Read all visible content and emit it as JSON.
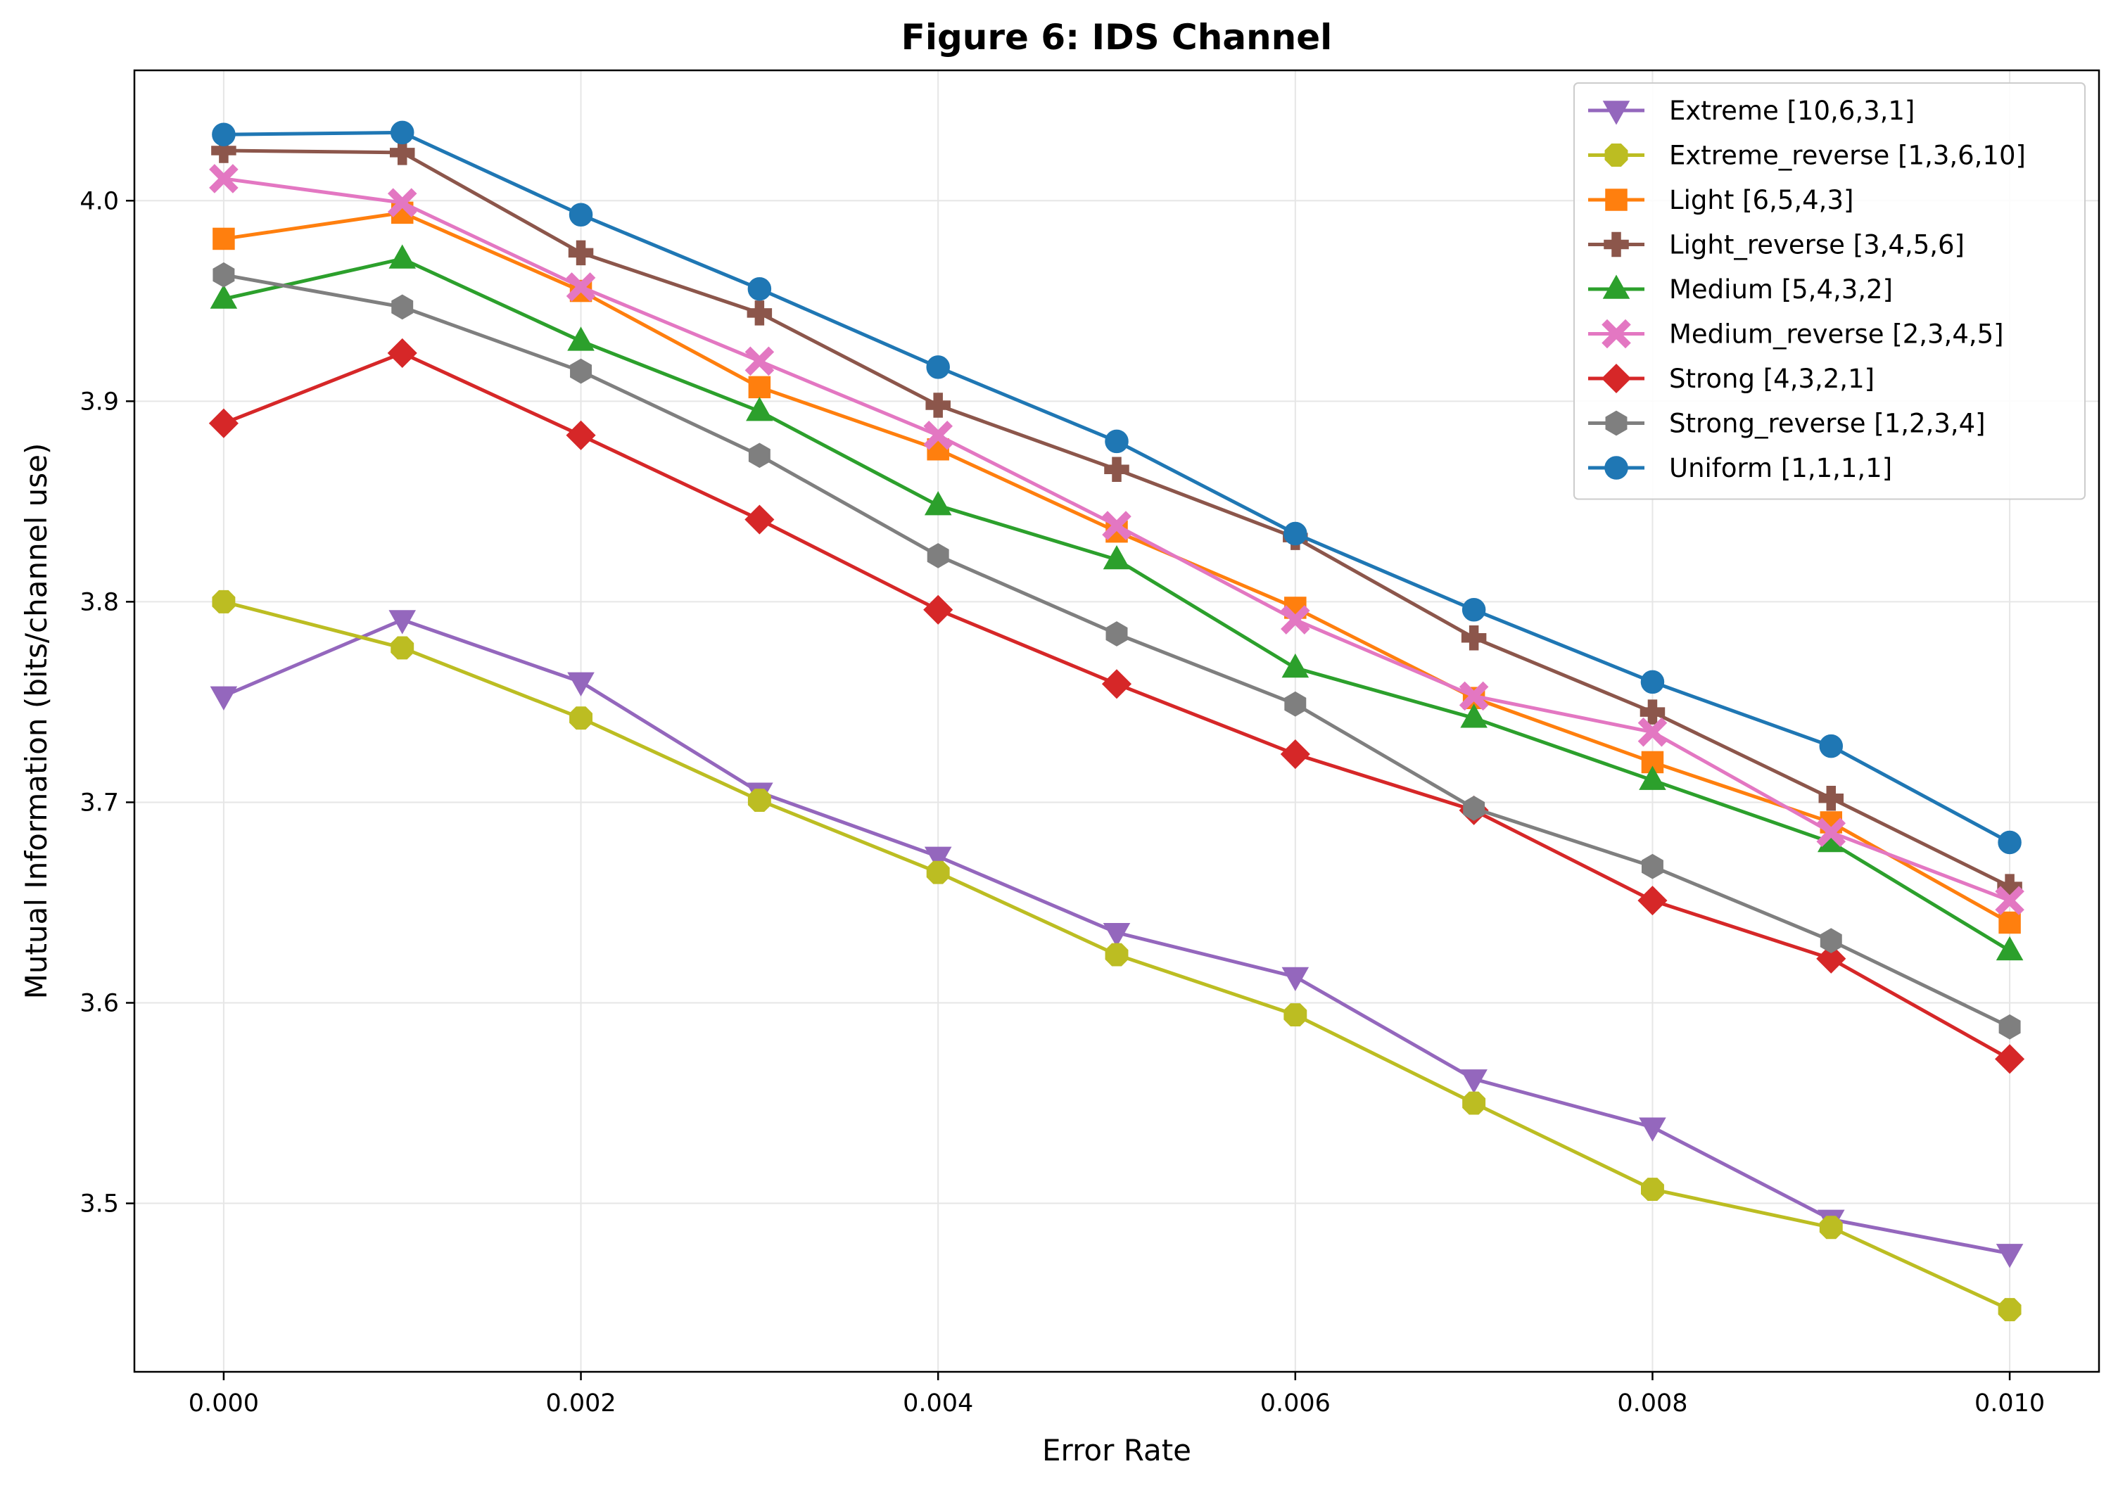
{
  "chart_data": {
    "type": "line",
    "title": "Figure 6: IDS Channel",
    "xlabel": "Error Rate",
    "ylabel": "Mutual Information (bits/channel use)",
    "x": [
      0.0,
      0.001,
      0.002,
      0.003,
      0.004,
      0.005,
      0.006,
      0.007,
      0.008,
      0.009,
      0.01
    ],
    "xlim": [
      -0.0005,
      0.0105
    ],
    "ylim": [
      3.416,
      4.065
    ],
    "xticks": [
      0.0,
      0.002,
      0.004,
      0.006,
      0.008,
      0.01
    ],
    "xtick_labels": [
      "0.000",
      "0.002",
      "0.004",
      "0.006",
      "0.008",
      "0.010"
    ],
    "yticks": [
      3.5,
      3.6,
      3.7,
      3.8,
      3.9,
      4.0
    ],
    "ytick_labels": [
      "3.5",
      "3.6",
      "3.7",
      "3.8",
      "3.9",
      "4.0"
    ],
    "grid": true,
    "legend_position": "top-right",
    "series": [
      {
        "name": "Extreme [10,6,3,1]",
        "color": "#9467bd",
        "marker": "triangle-down",
        "values": [
          3.753,
          3.791,
          3.76,
          3.705,
          3.673,
          3.635,
          3.613,
          3.562,
          3.538,
          3.492,
          3.475
        ]
      },
      {
        "name": "Extreme_reverse [1,3,6,10]",
        "color": "#bcbd22",
        "marker": "octagon",
        "values": [
          3.8,
          3.777,
          3.742,
          3.701,
          3.665,
          3.624,
          3.594,
          3.55,
          3.507,
          3.488,
          3.447
        ]
      },
      {
        "name": "Light [6,5,4,3]",
        "color": "#ff7f0e",
        "marker": "square",
        "values": [
          3.981,
          3.994,
          3.955,
          3.907,
          3.876,
          3.835,
          3.797,
          3.752,
          3.72,
          3.69,
          3.64
        ]
      },
      {
        "name": "Light_reverse [3,4,5,6]",
        "color": "#8c564b",
        "marker": "plus",
        "values": [
          4.025,
          4.024,
          3.974,
          3.944,
          3.898,
          3.866,
          3.832,
          3.782,
          3.745,
          3.702,
          3.658
        ]
      },
      {
        "name": "Medium [5,4,3,2]",
        "color": "#2ca02c",
        "marker": "triangle-up",
        "values": [
          3.951,
          3.971,
          3.93,
          3.895,
          3.848,
          3.821,
          3.767,
          3.742,
          3.711,
          3.68,
          3.626
        ]
      },
      {
        "name": "Medium_reverse [2,3,4,5]",
        "color": "#e377c2",
        "marker": "x",
        "values": [
          4.011,
          3.999,
          3.957,
          3.92,
          3.883,
          3.838,
          3.791,
          3.753,
          3.735,
          3.685,
          3.651
        ]
      },
      {
        "name": "Strong [4,3,2,1]",
        "color": "#d62728",
        "marker": "diamond",
        "values": [
          3.889,
          3.924,
          3.883,
          3.841,
          3.796,
          3.759,
          3.724,
          3.696,
          3.651,
          3.622,
          3.572
        ]
      },
      {
        "name": "Strong_reverse [1,2,3,4]",
        "color": "#7f7f7f",
        "marker": "hexagon",
        "values": [
          3.963,
          3.947,
          3.915,
          3.873,
          3.823,
          3.784,
          3.749,
          3.697,
          3.668,
          3.631,
          3.588
        ]
      },
      {
        "name": "Uniform [1,1,1,1]",
        "color": "#1f77b4",
        "marker": "circle",
        "values": [
          4.033,
          4.034,
          3.993,
          3.956,
          3.917,
          3.88,
          3.834,
          3.796,
          3.76,
          3.728,
          3.68
        ]
      }
    ]
  }
}
